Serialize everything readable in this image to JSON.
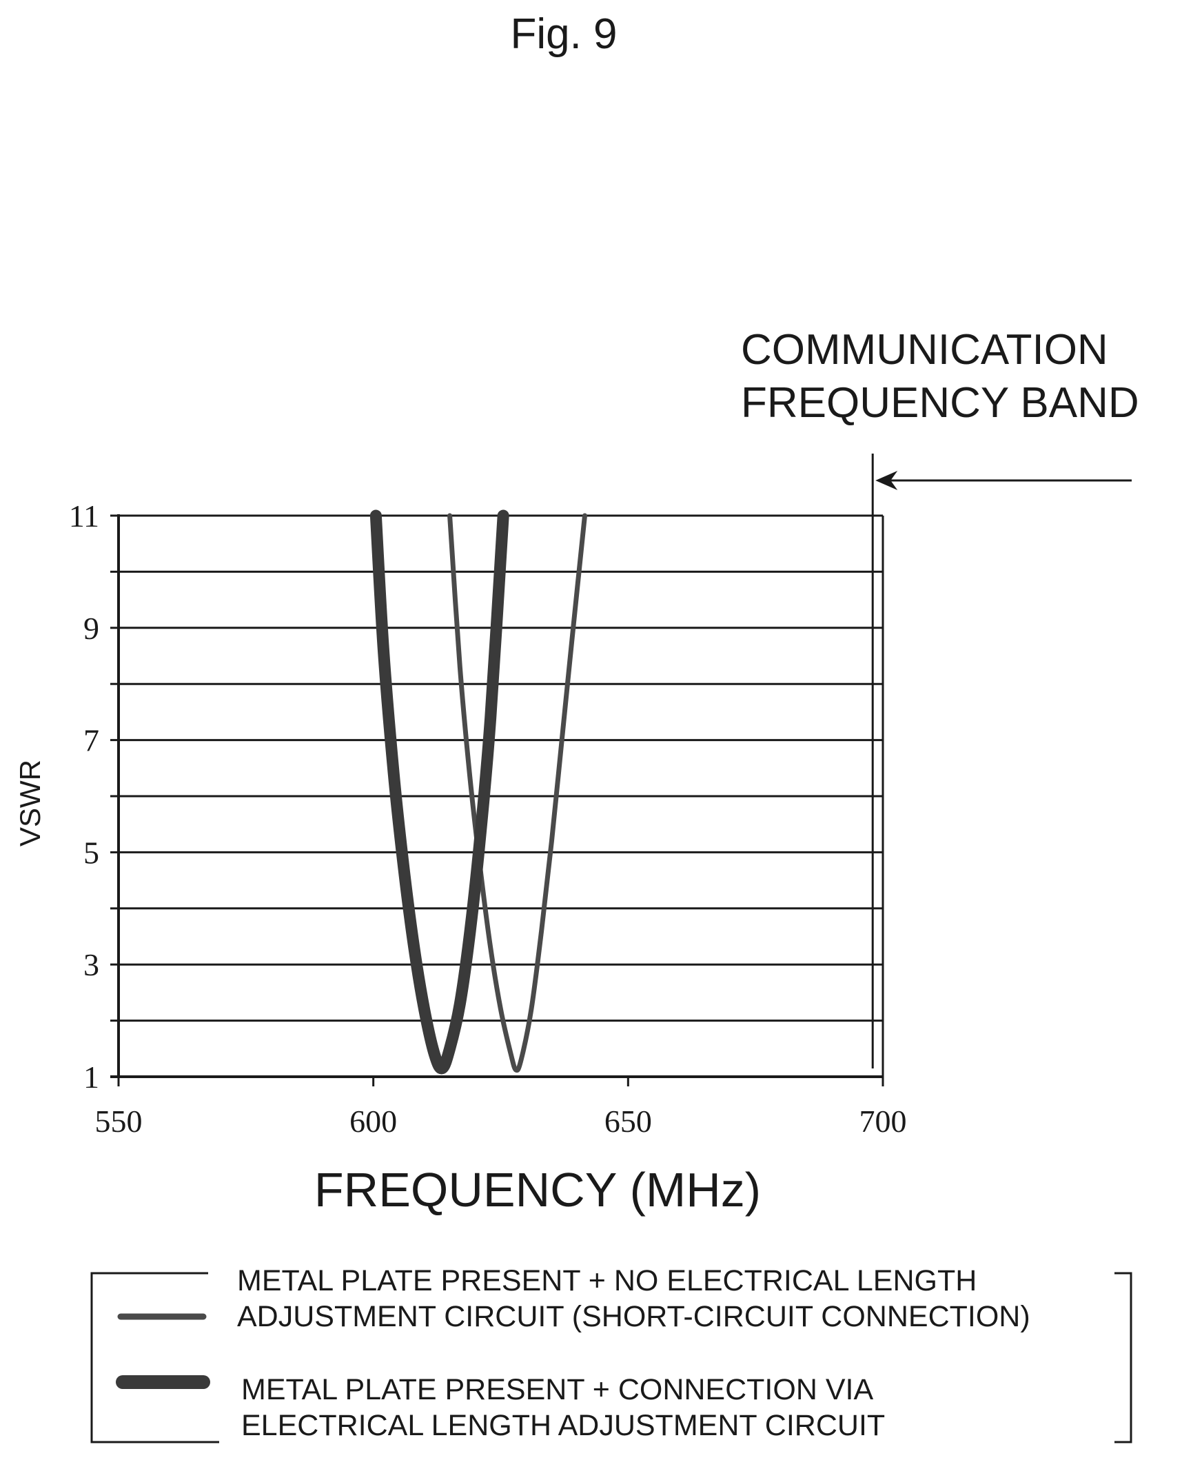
{
  "figure": {
    "title": "Fig. 9"
  },
  "chart_data": {
    "type": "line",
    "title": "",
    "xlabel": "FREQUENCY (MHz)",
    "ylabel": "VSWR",
    "xlim": [
      550,
      700
    ],
    "ylim": [
      1,
      11
    ],
    "x_ticks": [
      550,
      600,
      650,
      700
    ],
    "y_ticks": [
      1,
      3,
      5,
      7,
      9,
      11
    ],
    "grid": "horizontal lines every 1 VSWR",
    "annotation": {
      "lines": [
        "COMMUNICATION",
        "FREQUENCY BAND"
      ],
      "marker_frequency": 698
    },
    "legend_position": "bottom",
    "series": [
      {
        "legend_lines": [
          "METAL PLATE PRESENT + NO ELECTRICAL LENGTH",
          "ADJUSTMENT CIRCUIT (SHORT-CIRCUIT CONNECTION)"
        ],
        "style": "thin",
        "color": "#4a4a4a",
        "x": [
          615,
          617,
          619,
          621,
          623,
          625,
          627,
          628,
          629,
          631,
          633,
          635,
          637,
          639,
          641.5
        ],
        "y": [
          11,
          8.3,
          6.3,
          4.7,
          3.3,
          2.2,
          1.4,
          1.12,
          1.3,
          2.2,
          3.6,
          5.2,
          7.0,
          8.8,
          11
        ]
      },
      {
        "legend_lines": [
          "METAL PLATE PRESENT + CONNECTION VIA",
          "ELECTRICAL LENGTH ADJUSTMENT CIRCUIT"
        ],
        "style": "thick",
        "color": "#3a3a3a",
        "x": [
          600.5,
          602,
          604,
          606,
          608,
          610,
          612,
          613.5,
          615,
          617,
          619,
          621,
          623,
          625.5
        ],
        "y": [
          11,
          8.6,
          6.4,
          4.7,
          3.3,
          2.2,
          1.4,
          1.15,
          1.5,
          2.3,
          3.6,
          5.3,
          7.4,
          11
        ]
      }
    ]
  }
}
